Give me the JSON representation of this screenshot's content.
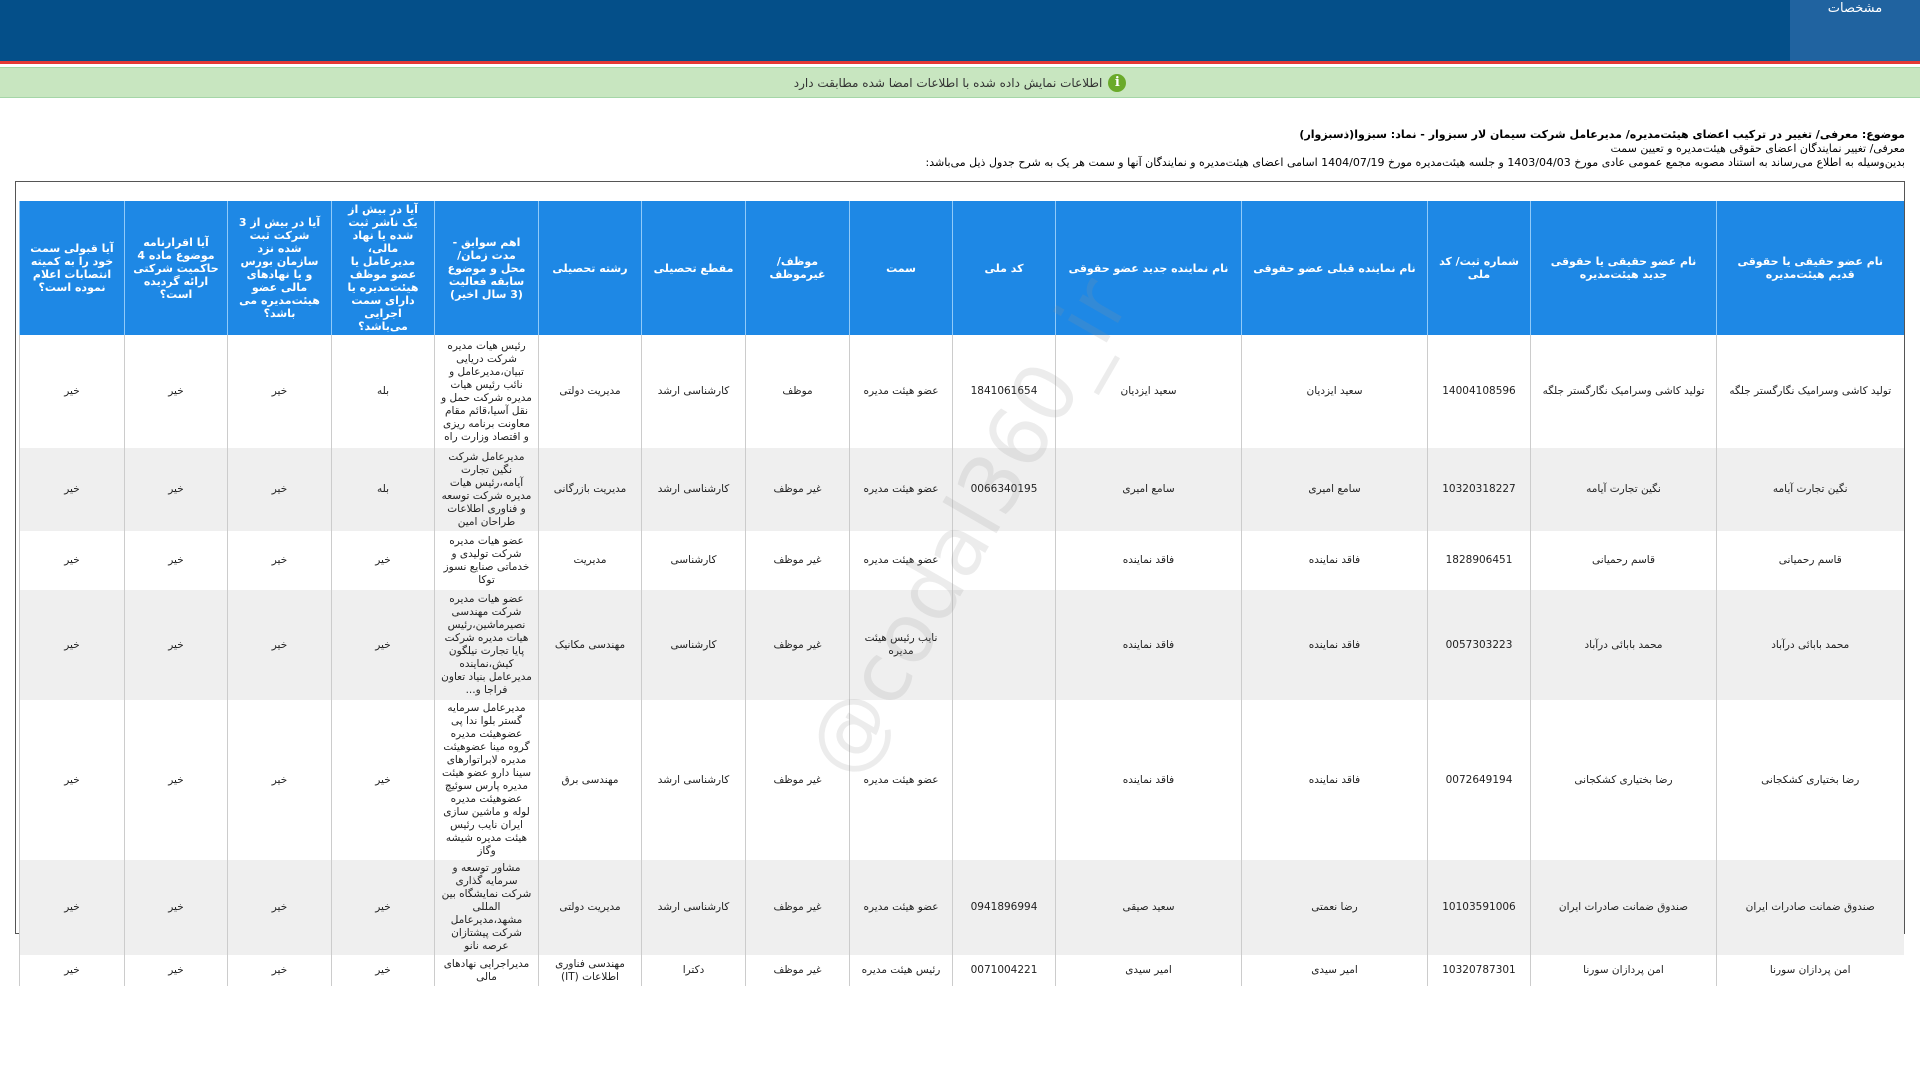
{
  "header": {
    "tab": "مشخصات"
  },
  "notice": "اطلاعات نمایش داده شده با اطلاعات امضا شده مطابقت دارد",
  "subject": {
    "title": "موضوع: معرفی/ تغییر در ترکیب اعضای هیئت‌مدیره/ مدیرعامل شرکت سیمان لار سبزوار - نماد: سبزوا(ذسبزوار)",
    "subtitle": "معرفی/ تغییر نمایندگان اعضای حقوقی هیئت‌مدیره و تعیین سمت",
    "intro": "بدین‌وسیله به اطلاع می‌رساند به استناد مصوبه مجمع عمومی عادی مورخ 1403/04/03 و جلسه هیئت‌مدیره مورخ 1404/07/19 اسامی اعضای هیئت‌مدیره و نمایندگان آنها و سمت هر یک به شرح جدول ذیل می‌باشد:"
  },
  "table": {
    "columns": [
      "نام عضو حقیقی یا حقوقی قدیم هیئت‌مدیره",
      "نام عضو حقیقی یا حقوقی جدید هیئت‌مدیره",
      "شماره ثبت/ کد ملی",
      "نام نماینده قبلی عضو حقوقی",
      "نام نماینده جدید عضو حقوقی",
      "کد ملی",
      "سمت",
      "موظف/ غیرموظف",
      "مقطع تحصیلی",
      "رشته تحصیلی",
      "اهم سوابق - مدت زمان/ محل و موضوع سابقه فعالیت (3 سال اخیر)",
      "آیا در بیش از یک ناشر ثبت شده یا نهاد مالی، مدیرعامل یا عضو موظف هیئت‌مدیره یا دارای سمت اجرایی می‌باشد؟",
      "آیا در بیش از 3 شرکت ثبت شده نزد سازمان بورس و یا نهادهای مالی عضو هیئت‌مدیره می باشد؟",
      "آیا اقرارنامه موضوع ماده 4 حاکمیت شرکتی ارائه گردیده است؟",
      "آیا قبولی سمت خود را به کمیته انتصابات اعلام نموده است؟"
    ],
    "rows": [
      [
        "تولید کاشی وسرامیک نگارگستر جلگه",
        "تولید کاشی وسرامیک نگارگستر جلگه",
        "14004108596",
        "سعید ایزدیان",
        "سعید ایزدیان",
        "1841061654",
        "عضو هیئت مدیره",
        "موظف",
        "کارشناسی ارشد",
        "مدیریت دولتی",
        "رئیس هیات مدیره شرکت دریایی تبیان،مدیرعامل و نائب رئیس هیات مدیره شرکت حمل و نقل آسیا،قائم مقام معاونت برنامه ریزی و اقتصاد وزارت راه",
        "بله",
        "خیر",
        "خیر",
        "خیر"
      ],
      [
        "نگین تجارت آیامه",
        "نگین تجارت آیامه",
        "10320318227",
        "سامع امیری",
        "سامع امیری",
        "0066340195",
        "عضو هیئت مدیره",
        "غیر موظف",
        "کارشناسی ارشد",
        "مدیریت بازرگانی",
        "مدیرعامل شرکت نگین تجارت آیامه،رئیس هیات مدیره شرکت توسعه و فناوری اطلاعات طراحان امین",
        "بله",
        "خیر",
        "خیر",
        "خیر"
      ],
      [
        "قاسم رحمیانی",
        "قاسم رحمیانی",
        "1828906451",
        "فاقد نماینده",
        "فاقد نماینده",
        null,
        "عضو هیئت مدیره",
        "غیر موظف",
        "کارشناسی",
        "مدیریت",
        "عضو هیات مدیره شرکت تولیدی و خدماتی صنایع نسوز توکا",
        "خیر",
        "خیر",
        "خیر",
        "خیر"
      ],
      [
        "محمد بابائی درآباد",
        "محمد بابائی درآباد",
        "0057303223",
        "فاقد نماینده",
        "فاقد نماینده",
        null,
        "نایب رئیس هیئت مدیره",
        "غیر موظف",
        "کارشناسی",
        "مهندسی مکانیک",
        "عضو هیات مدیره شرکت مهندسی نصیرماشین،رئیس هیات مدیره شرکت پایا تجارت نیلگون کیش،نماینده مدیرعامل بنیاد تعاون فراجا و...",
        "خیر",
        "خیر",
        "خیر",
        "خیر"
      ],
      [
        "رضا بختیاری کشکجانی",
        "رضا بختیاری کشکجانی",
        "0072649194",
        "فاقد نماینده",
        "فاقد نماینده",
        null,
        "عضو هیئت مدیره",
        "غیر موظف",
        "کارشناسی ارشد",
        "مهندسی برق",
        "مدیرعامل سرمایه گستر بلوا ندا پی عضوهیئت مدیره گروه مینا عضوهیئت مدیره لابراتوارهای سینا دارو عضو هیئت مدیره پارس سوئیچ عضوهیئت مدیره لوله و ماشین سازی ایران نایب رئیس هیئت مدیره شیشه وگاز",
        "خیر",
        "خیر",
        "خیر",
        "خیر"
      ],
      [
        "صندوق ضمانت صادرات ایران",
        "صندوق ضمانت صادرات ایران",
        "10103591006",
        "رضا نعمتی",
        "سعید صیقی",
        "0941896994",
        "عضو هیئت مدیره",
        "غیر موظف",
        "کارشناسی ارشد",
        "مدیریت دولتی",
        "مشاور توسعه و سرمایه گذاری شرکت نمایشگاه بین المللی مشهد،مدیرعامل شرکت پیشتازان عرصه نانو",
        "خیر",
        "خیر",
        "خیر",
        "خیر"
      ],
      [
        "امن پردازان سورنا",
        "امن پردازان سورنا",
        "10320787301",
        "امیر سیدی",
        "امیر سیدی",
        "0071004221",
        "رئیس هیئت مدیره",
        "غیر موظف",
        "دکترا",
        "مهندسی فناوری اطلاعات (IT)",
        "مدیراجرایی نهادهای مالی",
        "خیر",
        "خیر",
        "خیر",
        "خیر"
      ]
    ]
  },
  "watermark": "@codal360_ir"
}
